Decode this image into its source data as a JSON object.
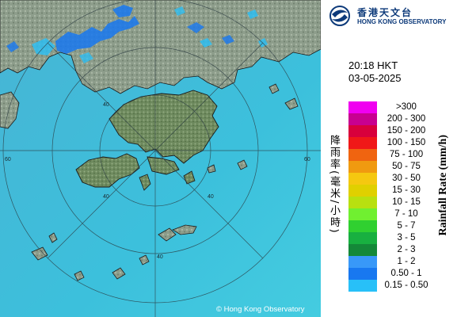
{
  "logo": {
    "chinese_name": "香港天文台",
    "english_name": "HONG KONG OBSERVATORY"
  },
  "timestamp": {
    "time": "20:18 HKT",
    "date": "03-05-2025"
  },
  "legend": {
    "title_cn": "降雨率(毫米/小時)",
    "title_en": "Rainfall Rate (mm/h)",
    "entries": [
      {
        "label": ">300",
        "color": "#f000f0"
      },
      {
        "label": "200 - 300",
        "color": "#c80090"
      },
      {
        "label": "150 - 200",
        "color": "#d8003c"
      },
      {
        "label": "100 - 150",
        "color": "#f01818"
      },
      {
        "label": "75 - 100",
        "color": "#f06410"
      },
      {
        "label": "50 - 75",
        "color": "#f09a10"
      },
      {
        "label": "30 - 50",
        "color": "#f5c810"
      },
      {
        "label": "15 - 30",
        "color": "#e0d000"
      },
      {
        "label": "10 - 15",
        "color": "#b8e010"
      },
      {
        "label": "7 - 10",
        "color": "#70f030"
      },
      {
        "label": "5 - 7",
        "color": "#30d030"
      },
      {
        "label": "3 - 5",
        "color": "#18b040"
      },
      {
        "label": "2 - 3",
        "color": "#148838"
      },
      {
        "label": "1 - 2",
        "color": "#3898f8"
      },
      {
        "label": "0.50 - 1",
        "color": "#1878f0"
      },
      {
        "label": "0.15 - 0.50",
        "color": "#28c0f8"
      }
    ]
  },
  "map": {
    "range_rings": [
      "40",
      "60",
      "60",
      "40",
      "40",
      "40"
    ],
    "copyright": "© Hong Kong Observatory",
    "colors": {
      "sea": "#3ab8d8",
      "land": "#8a9a88",
      "coast": "#1a1a1a",
      "rain_light": "#28c0f8",
      "rain_medium": "#1878f0"
    }
  }
}
